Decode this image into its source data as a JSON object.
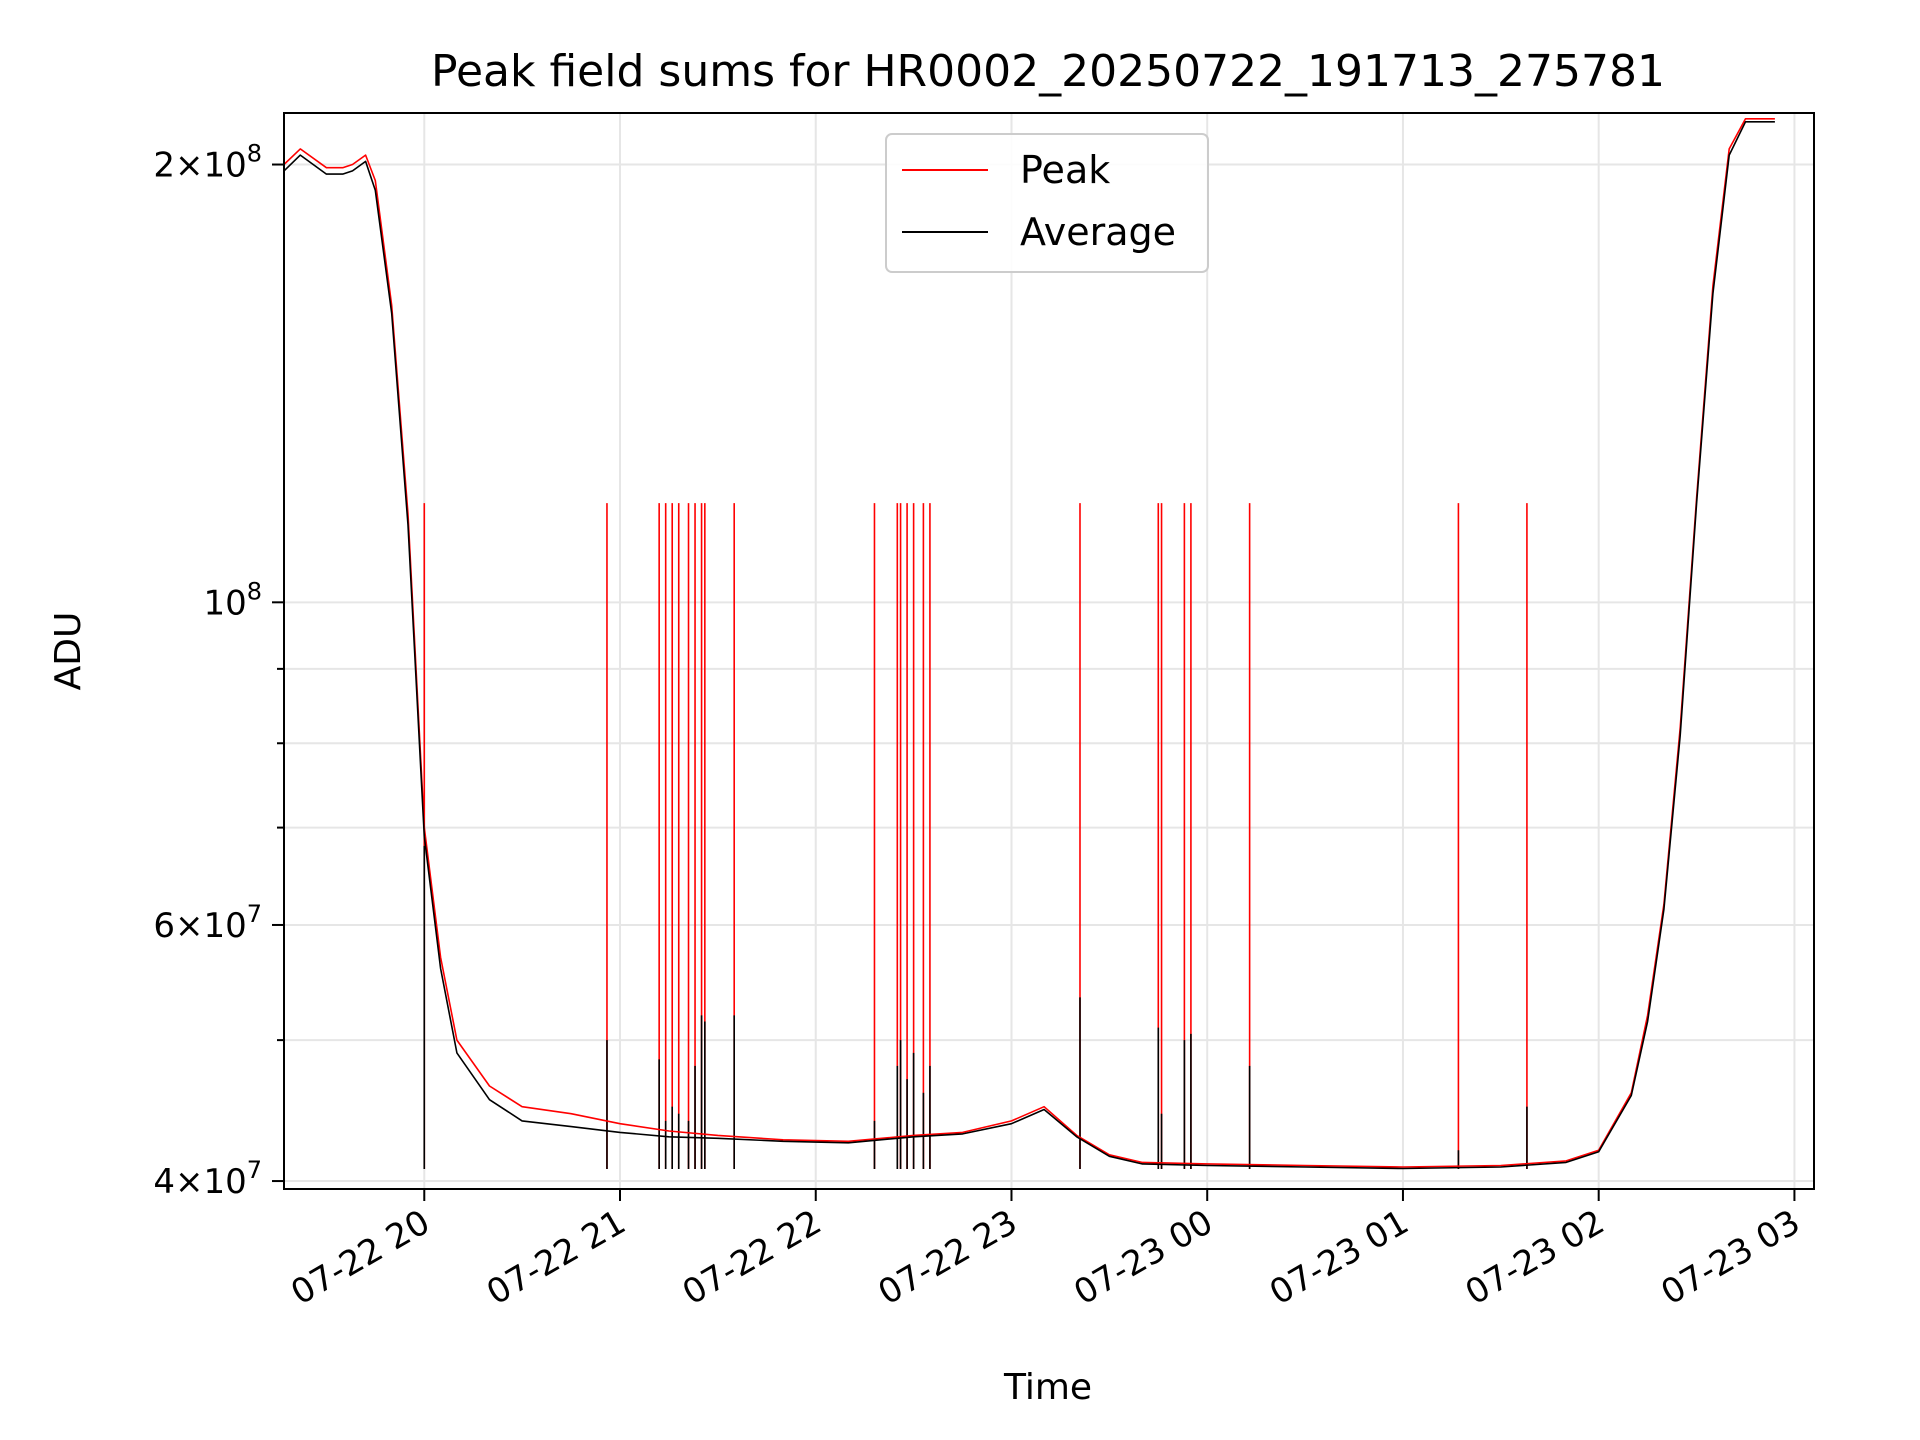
{
  "chart_data": {
    "type": "line",
    "title": "Peak field sums for HR0002_20250722_191713_275781",
    "xlabel": "Time",
    "ylabel": "ADU",
    "yscale": "log",
    "grid": true,
    "legend_position": "upper center",
    "xlim": [
      "2025-07-22 19:17",
      "2025-07-23 03:06"
    ],
    "ylim": [
      39500000,
      217000000
    ],
    "x_ticks": [
      {
        "value": "2025-07-22 20:00",
        "label": "07-22 20"
      },
      {
        "value": "2025-07-22 21:00",
        "label": "07-22 21"
      },
      {
        "value": "2025-07-22 22:00",
        "label": "07-22 22"
      },
      {
        "value": "2025-07-22 23:00",
        "label": "07-22 23"
      },
      {
        "value": "2025-07-23 00:00",
        "label": "07-23 00"
      },
      {
        "value": "2025-07-23 01:00",
        "label": "07-23 01"
      },
      {
        "value": "2025-07-23 02:00",
        "label": "07-23 02"
      },
      {
        "value": "2025-07-23 03:00",
        "label": "07-23 03"
      }
    ],
    "y_ticks": [
      {
        "value": 40000000,
        "mantissa": "4",
        "exponent": "7",
        "sci": true
      },
      {
        "value": 60000000,
        "mantissa": "6",
        "exponent": "7",
        "sci": true
      },
      {
        "value": 100000000,
        "mantissa": "",
        "exponent": "8",
        "sci": false
      },
      {
        "value": 200000000,
        "mantissa": "2",
        "exponent": "8",
        "sci": true
      }
    ],
    "y_minor_ticks": [
      50000000,
      70000000,
      80000000,
      90000000
    ],
    "series": [
      {
        "name": "Peak",
        "color": "#ff0000",
        "x": [
          "2025-07-22 19:17",
          "2025-07-22 19:22",
          "2025-07-22 19:30",
          "2025-07-22 19:35",
          "2025-07-22 19:38",
          "2025-07-22 19:42",
          "2025-07-22 19:45",
          "2025-07-22 19:50",
          "2025-07-22 19:55",
          "2025-07-22 20:00",
          "2025-07-22 20:05",
          "2025-07-22 20:10",
          "2025-07-22 20:20",
          "2025-07-22 20:30",
          "2025-07-22 20:45",
          "2025-07-22 21:00",
          "2025-07-22 21:15",
          "2025-07-22 21:30",
          "2025-07-22 21:50",
          "2025-07-22 22:10",
          "2025-07-22 22:30",
          "2025-07-22 22:45",
          "2025-07-22 23:00",
          "2025-07-22 23:10",
          "2025-07-22 23:20",
          "2025-07-22 23:30",
          "2025-07-22 23:40",
          "2025-07-23 00:00",
          "2025-07-23 00:30",
          "2025-07-23 01:00",
          "2025-07-23 01:30",
          "2025-07-23 01:50",
          "2025-07-23 02:00",
          "2025-07-23 02:10",
          "2025-07-23 02:15",
          "2025-07-23 02:20",
          "2025-07-23 02:25",
          "2025-07-23 02:30",
          "2025-07-23 02:35",
          "2025-07-23 02:40",
          "2025-07-23 02:45",
          "2025-07-23 02:50",
          "2025-07-23 02:54"
        ],
        "y": [
          200000000,
          205000000,
          199000000,
          199000000,
          200000000,
          203000000,
          195000000,
          160000000,
          115000000,
          70000000,
          57000000,
          50000000,
          46500000,
          45000000,
          44500000,
          43800000,
          43300000,
          43000000,
          42700000,
          42600000,
          43000000,
          43200000,
          44000000,
          45000000,
          43000000,
          41700000,
          41200000,
          41100000,
          41000000,
          40900000,
          41000000,
          41300000,
          42000000,
          46000000,
          52000000,
          62000000,
          82000000,
          118000000,
          165000000,
          205000000,
          215000000,
          215000000,
          215000000
        ]
      },
      {
        "name": "Average",
        "color": "#000000",
        "x": [
          "2025-07-22 19:17",
          "2025-07-22 19:22",
          "2025-07-22 19:30",
          "2025-07-22 19:35",
          "2025-07-22 19:38",
          "2025-07-22 19:42",
          "2025-07-22 19:45",
          "2025-07-22 19:50",
          "2025-07-22 19:55",
          "2025-07-22 20:00",
          "2025-07-22 20:05",
          "2025-07-22 20:10",
          "2025-07-22 20:20",
          "2025-07-22 20:30",
          "2025-07-22 20:45",
          "2025-07-22 21:00",
          "2025-07-22 21:15",
          "2025-07-22 21:30",
          "2025-07-22 21:50",
          "2025-07-22 22:10",
          "2025-07-22 22:30",
          "2025-07-22 22:45",
          "2025-07-22 23:00",
          "2025-07-22 23:10",
          "2025-07-22 23:20",
          "2025-07-22 23:30",
          "2025-07-22 23:40",
          "2025-07-23 00:00",
          "2025-07-23 00:30",
          "2025-07-23 01:00",
          "2025-07-23 01:30",
          "2025-07-23 01:50",
          "2025-07-23 02:00",
          "2025-07-23 02:10",
          "2025-07-23 02:15",
          "2025-07-23 02:20",
          "2025-07-23 02:25",
          "2025-07-23 02:30",
          "2025-07-23 02:35",
          "2025-07-23 02:40",
          "2025-07-23 02:45",
          "2025-07-23 02:50",
          "2025-07-23 02:54"
        ],
        "y": [
          198000000,
          203000000,
          197000000,
          197000000,
          198000000,
          201000000,
          192000000,
          158000000,
          113000000,
          69000000,
          56000000,
          49000000,
          45500000,
          44000000,
          43600000,
          43200000,
          42900000,
          42800000,
          42600000,
          42500000,
          42900000,
          43100000,
          43800000,
          44800000,
          42900000,
          41600000,
          41100000,
          41000000,
          40900000,
          40800000,
          40900000,
          41200000,
          41900000,
          45800000,
          51500000,
          61500000,
          81000000,
          117000000,
          163000000,
          203000000,
          214000000,
          214000000,
          214000000
        ]
      }
    ],
    "spikes": [
      {
        "time": "2025-07-22 20:00",
        "peak": 117000000,
        "average": 68000000
      },
      {
        "time": "2025-07-22 20:56",
        "peak": 117000000,
        "average": 50000000
      },
      {
        "time": "2025-07-22 21:12",
        "peak": 117000000,
        "average": 48500000
      },
      {
        "time": "2025-07-22 21:14",
        "peak": 117000000,
        "average": 44000000
      },
      {
        "time": "2025-07-22 21:16",
        "peak": 117000000,
        "average": 45000000
      },
      {
        "time": "2025-07-22 21:18",
        "peak": 117000000,
        "average": 44500000
      },
      {
        "time": "2025-07-22 21:21",
        "peak": 117000000,
        "average": 44000000
      },
      {
        "time": "2025-07-22 21:23",
        "peak": 117000000,
        "average": 48000000
      },
      {
        "time": "2025-07-22 21:25",
        "peak": 117000000,
        "average": 52000000
      },
      {
        "time": "2025-07-22 21:26",
        "peak": 117000000,
        "average": 51500000
      },
      {
        "time": "2025-07-22 21:35",
        "peak": 117000000,
        "average": 52000000
      },
      {
        "time": "2025-07-22 22:18",
        "peak": 117000000,
        "average": 44000000
      },
      {
        "time": "2025-07-22 22:25",
        "peak": 117000000,
        "average": 48000000
      },
      {
        "time": "2025-07-22 22:26",
        "peak": 117000000,
        "average": 50000000
      },
      {
        "time": "2025-07-22 22:28",
        "peak": 117000000,
        "average": 47000000
      },
      {
        "time": "2025-07-22 22:30",
        "peak": 117000000,
        "average": 49000000
      },
      {
        "time": "2025-07-22 22:33",
        "peak": 117000000,
        "average": 46000000
      },
      {
        "time": "2025-07-22 22:35",
        "peak": 117000000,
        "average": 48000000
      },
      {
        "time": "2025-07-22 23:21",
        "peak": 117000000,
        "average": 53500000
      },
      {
        "time": "2025-07-22 23:45",
        "peak": 117000000,
        "average": 51000000
      },
      {
        "time": "2025-07-22 23:46",
        "peak": 117000000,
        "average": 44500000
      },
      {
        "time": "2025-07-22 23:53",
        "peak": 117000000,
        "average": 50000000
      },
      {
        "time": "2025-07-22 23:55",
        "peak": 117000000,
        "average": 50500000
      },
      {
        "time": "2025-07-23 00:13",
        "peak": 117000000,
        "average": 48000000
      },
      {
        "time": "2025-07-23 01:17",
        "peak": 117000000,
        "average": 42000000
      },
      {
        "time": "2025-07-23 01:38",
        "peak": 117000000,
        "average": 45000000
      }
    ]
  },
  "legend": [
    {
      "label": "Peak",
      "color": "#ff0000"
    },
    {
      "label": "Average",
      "color": "#000000"
    }
  ]
}
